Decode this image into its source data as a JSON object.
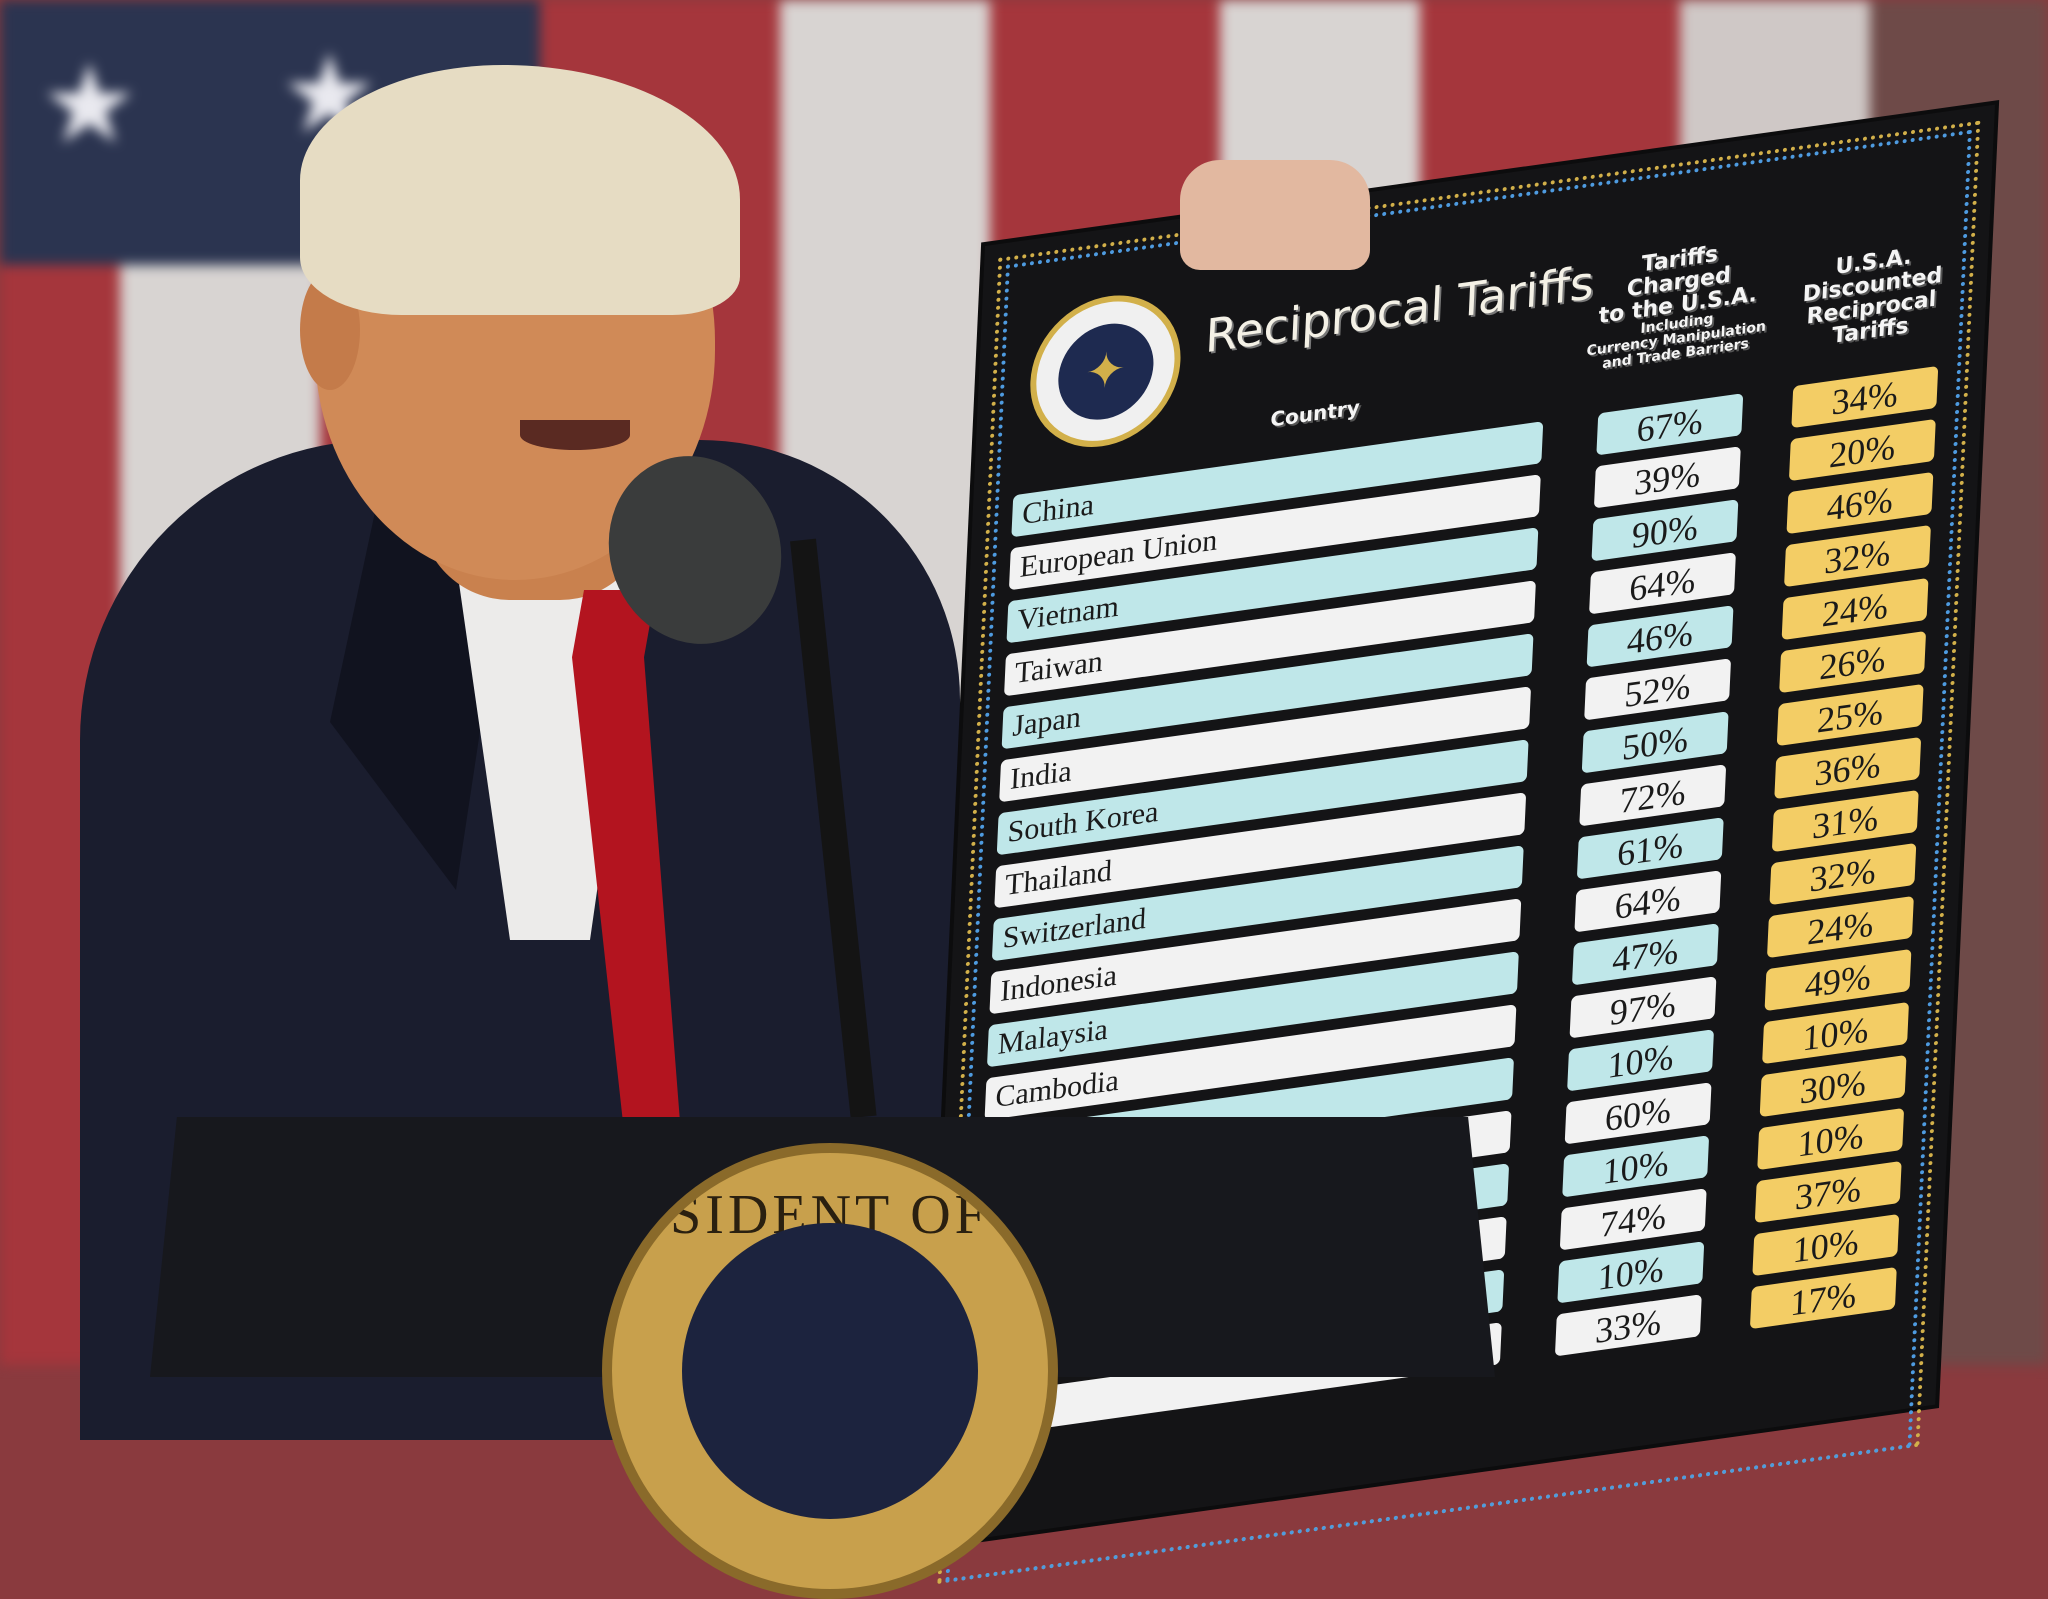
{
  "scene": {
    "flag_colors": {
      "red": "#a5363c",
      "white": "#d8d4d2",
      "blue": "#2b3450"
    },
    "podium_seal_text": "SIDENT OF THE U"
  },
  "board": {
    "title": "Reciprocal Tariffs",
    "seal_text": "SEAL OF THE PRESIDENT OF THE UNITED STATES",
    "headers": {
      "country": "Country",
      "charged_line1": "Tariffs Charged",
      "charged_line2": "to the U.S.A.",
      "charged_line3": "Including",
      "charged_line4": "Currency Manipulation",
      "charged_line5": "and Trade Barriers",
      "reciprocal_line1": "U.S.A. Discounted",
      "reciprocal_line2": "Reciprocal Tariffs"
    },
    "colors": {
      "teal": "#bfe7e9",
      "white": "#f2f2f2",
      "gold": "#f3cd65",
      "board": "#141416"
    },
    "rows": [
      {
        "country": "China",
        "charged": "67%",
        "reciprocal": "34%"
      },
      {
        "country": "European Union",
        "charged": "39%",
        "reciprocal": "20%"
      },
      {
        "country": "Vietnam",
        "charged": "90%",
        "reciprocal": "46%"
      },
      {
        "country": "Taiwan",
        "charged": "64%",
        "reciprocal": "32%"
      },
      {
        "country": "Japan",
        "charged": "46%",
        "reciprocal": "24%"
      },
      {
        "country": "India",
        "charged": "52%",
        "reciprocal": "26%"
      },
      {
        "country": "South Korea",
        "charged": "50%",
        "reciprocal": "25%"
      },
      {
        "country": "Thailand",
        "charged": "72%",
        "reciprocal": "36%"
      },
      {
        "country": "Switzerland",
        "charged": "61%",
        "reciprocal": "31%"
      },
      {
        "country": "Indonesia",
        "charged": "64%",
        "reciprocal": "32%"
      },
      {
        "country": "Malaysia",
        "charged": "47%",
        "reciprocal": "24%"
      },
      {
        "country": "Cambodia",
        "charged": "97%",
        "reciprocal": "49%"
      },
      {
        "country": "",
        "charged": "10%",
        "reciprocal": "10%"
      },
      {
        "country": "",
        "charged": "60%",
        "reciprocal": "30%"
      },
      {
        "country": "",
        "charged": "10%",
        "reciprocal": "10%"
      },
      {
        "country": "",
        "charged": "74%",
        "reciprocal": "37%"
      },
      {
        "country": "",
        "charged": "10%",
        "reciprocal": "10%"
      },
      {
        "country": "",
        "charged": "33%",
        "reciprocal": "17%"
      }
    ]
  }
}
